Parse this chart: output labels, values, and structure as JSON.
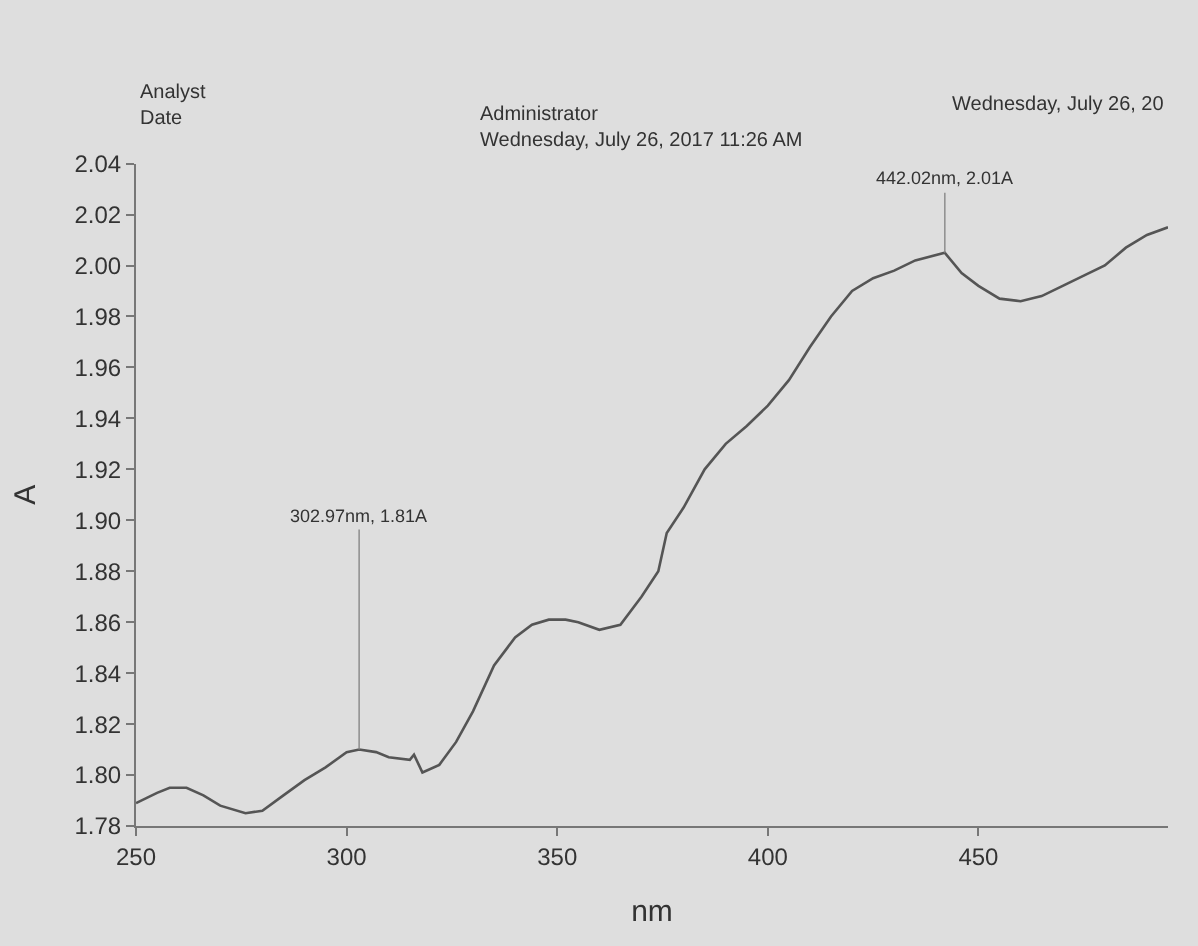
{
  "chart_data": {
    "type": "line",
    "xlabel": "nm",
    "ylabel": "A",
    "annotations": [
      "Analyst",
      "Date",
      "Administrator",
      "Wednesday, July 26, 2017 11:26 AM",
      "Wednesday, July 26, 20",
      {
        "text": "302.97nm, 1.81A",
        "x": 302.97,
        "y": 1.81
      },
      {
        "text": "442.02nm, 2.01A",
        "x": 442.02,
        "y": 2.005
      }
    ],
    "x": [
      250,
      255,
      258,
      262,
      266,
      270,
      276,
      280,
      285,
      290,
      295,
      300,
      303,
      307,
      310,
      315,
      316,
      318,
      322,
      326,
      330,
      335,
      340,
      344,
      348,
      352,
      355,
      360,
      365,
      370,
      374,
      376,
      380,
      385,
      390,
      395,
      400,
      405,
      410,
      415,
      420,
      425,
      430,
      435,
      442,
      446,
      450,
      455,
      460,
      465,
      470,
      475,
      480,
      485,
      490,
      495
    ],
    "series": [
      {
        "color": "#555555",
        "values": [
          1.789,
          1.793,
          1.795,
          1.795,
          1.792,
          1.788,
          1.785,
          1.786,
          1.792,
          1.798,
          1.803,
          1.809,
          1.81,
          1.809,
          1.807,
          1.806,
          1.808,
          1.801,
          1.804,
          1.813,
          1.825,
          1.843,
          1.854,
          1.859,
          1.861,
          1.861,
          1.86,
          1.857,
          1.859,
          1.87,
          1.88,
          1.895,
          1.905,
          1.92,
          1.93,
          1.937,
          1.945,
          1.955,
          1.968,
          1.98,
          1.99,
          1.995,
          1.998,
          2.002,
          2.005,
          1.997,
          1.992,
          1.987,
          1.986,
          1.988,
          1.992,
          1.996,
          2.0,
          2.007,
          2.012,
          2.015
        ]
      }
    ],
    "xlim": [
      250,
      495
    ],
    "xticks": [
      250,
      300,
      350,
      400,
      450
    ],
    "ylim": [
      1.78,
      2.04
    ],
    "yticks": [
      {
        "value": 1.78,
        "label": "1.78"
      },
      {
        "value": 1.8,
        "label": "1.80"
      },
      {
        "value": 1.82,
        "label": "1.82"
      },
      {
        "value": 1.84,
        "label": "1.84"
      },
      {
        "value": 1.86,
        "label": "1.86"
      },
      {
        "value": 1.88,
        "label": "1.88"
      },
      {
        "value": 1.9,
        "label": "1.90"
      },
      {
        "value": 1.92,
        "label": "1.92"
      },
      {
        "value": 1.94,
        "label": "1.94"
      },
      {
        "value": 1.96,
        "label": "1.96"
      },
      {
        "value": 1.98,
        "label": "1.98"
      },
      {
        "value": 2.0,
        "label": "2.00"
      },
      {
        "value": 2.02,
        "label": "2.02"
      },
      {
        "value": 2.04,
        "label": "2.04"
      }
    ],
    "grid": false,
    "marker": "none",
    "line_style": "solid"
  }
}
